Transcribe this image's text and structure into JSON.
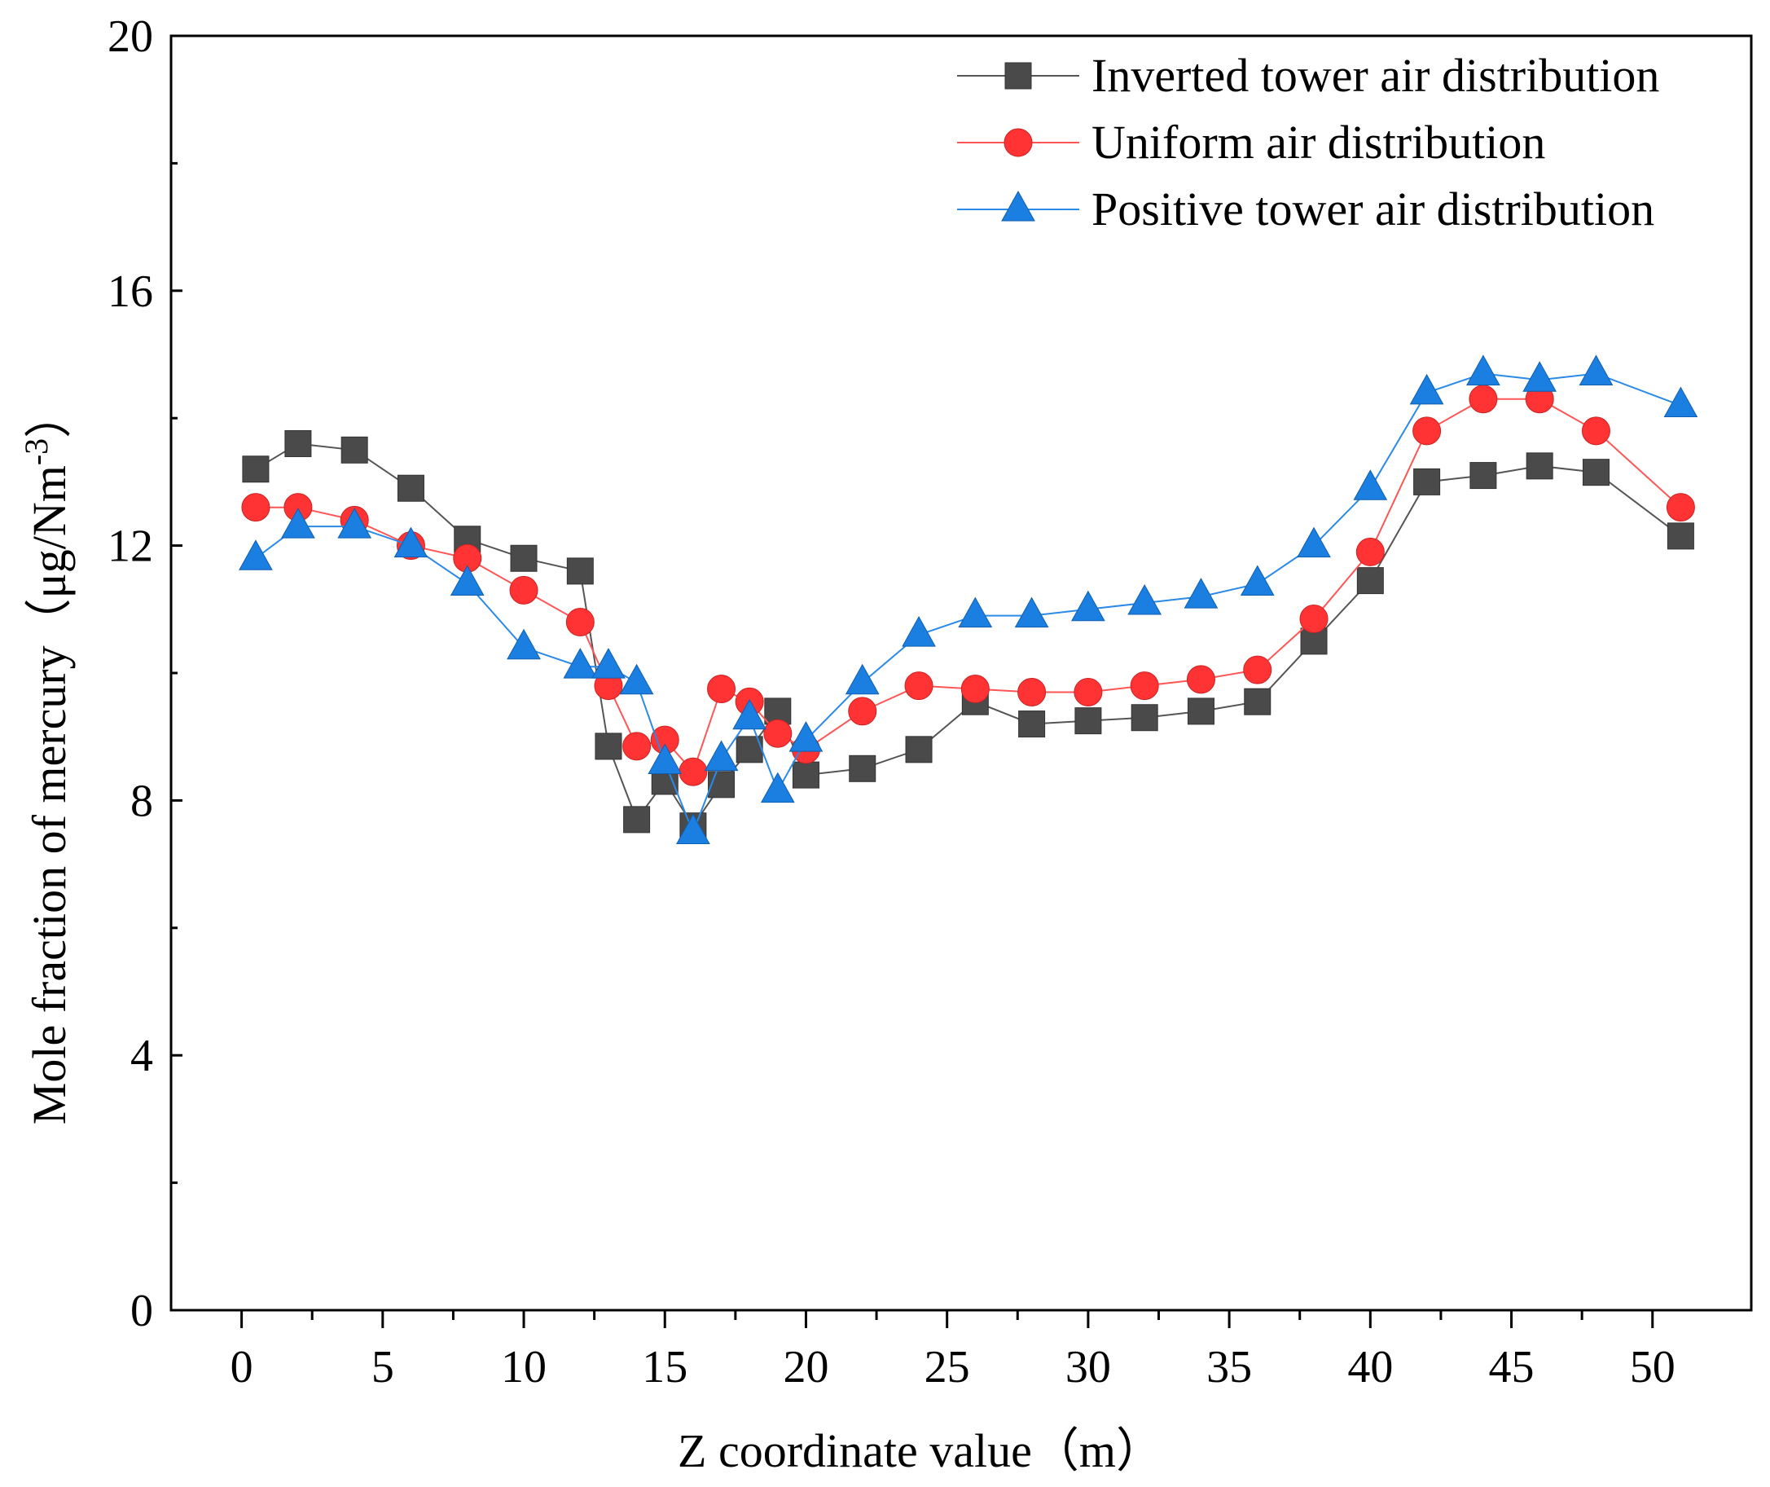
{
  "chart_data": {
    "type": "line",
    "title": "",
    "xlabel": "Z coordinate value（m）",
    "ylabel": "Mole fraction of mercury（μg/Nm",
    "ylabel_sup": "-3",
    "ylabel_end": "）",
    "xlim": [
      -2.5,
      53.5
    ],
    "ylim": [
      0,
      20
    ],
    "xticks": [
      0,
      5,
      10,
      15,
      20,
      25,
      30,
      35,
      40,
      45,
      50
    ],
    "xtick_labels": [
      "0",
      "5",
      "10",
      "15",
      "20",
      "25",
      "30",
      "35",
      "40",
      "45",
      "50"
    ],
    "yticks": [
      0,
      4,
      8,
      12,
      16,
      20
    ],
    "ytick_labels": [
      "0",
      "4",
      "8",
      "12",
      "16",
      "20"
    ],
    "legend_position": "top-right",
    "grid": false,
    "x": [
      0.5,
      2,
      4,
      6,
      8,
      10,
      12,
      13,
      14,
      15,
      16,
      17,
      18,
      19,
      20,
      22,
      24,
      26,
      28,
      30,
      32,
      34,
      36,
      38,
      40,
      42,
      44,
      46,
      48,
      51
    ],
    "series": [
      {
        "name": "Inverted tower air distribution",
        "marker": "square",
        "color": "#4a4a4a",
        "line_color": "#555555",
        "values": [
          13.2,
          13.6,
          13.5,
          12.9,
          12.1,
          11.8,
          11.6,
          8.85,
          7.7,
          8.3,
          7.6,
          8.25,
          8.8,
          9.4,
          8.4,
          8.5,
          8.8,
          9.55,
          9.2,
          9.25,
          9.3,
          9.4,
          9.55,
          10.5,
          11.45,
          13.0,
          13.1,
          13.25,
          13.15,
          12.15
        ]
      },
      {
        "name": "Uniform air distribution",
        "marker": "circle",
        "color": "#ff3333",
        "line_color": "#ff5555",
        "values": [
          12.6,
          12.6,
          12.4,
          12.0,
          11.8,
          11.3,
          10.8,
          9.8,
          8.85,
          8.95,
          8.45,
          9.75,
          9.55,
          9.05,
          8.8,
          9.4,
          9.8,
          9.75,
          9.7,
          9.7,
          9.8,
          9.9,
          10.05,
          10.85,
          11.9,
          13.8,
          14.3,
          14.3,
          13.8,
          12.6
        ]
      },
      {
        "name": "Positive tower air distribution",
        "marker": "triangle",
        "color": "#1a7fe0",
        "line_color": "#2a8ae8",
        "values": [
          11.8,
          12.3,
          12.3,
          12.0,
          11.4,
          10.4,
          10.1,
          10.1,
          9.85,
          8.6,
          7.5,
          8.65,
          9.3,
          8.15,
          8.95,
          9.85,
          10.6,
          10.9,
          10.9,
          11.0,
          11.1,
          11.2,
          11.4,
          12.0,
          12.9,
          14.4,
          14.7,
          14.6,
          14.7,
          14.2
        ]
      }
    ]
  }
}
